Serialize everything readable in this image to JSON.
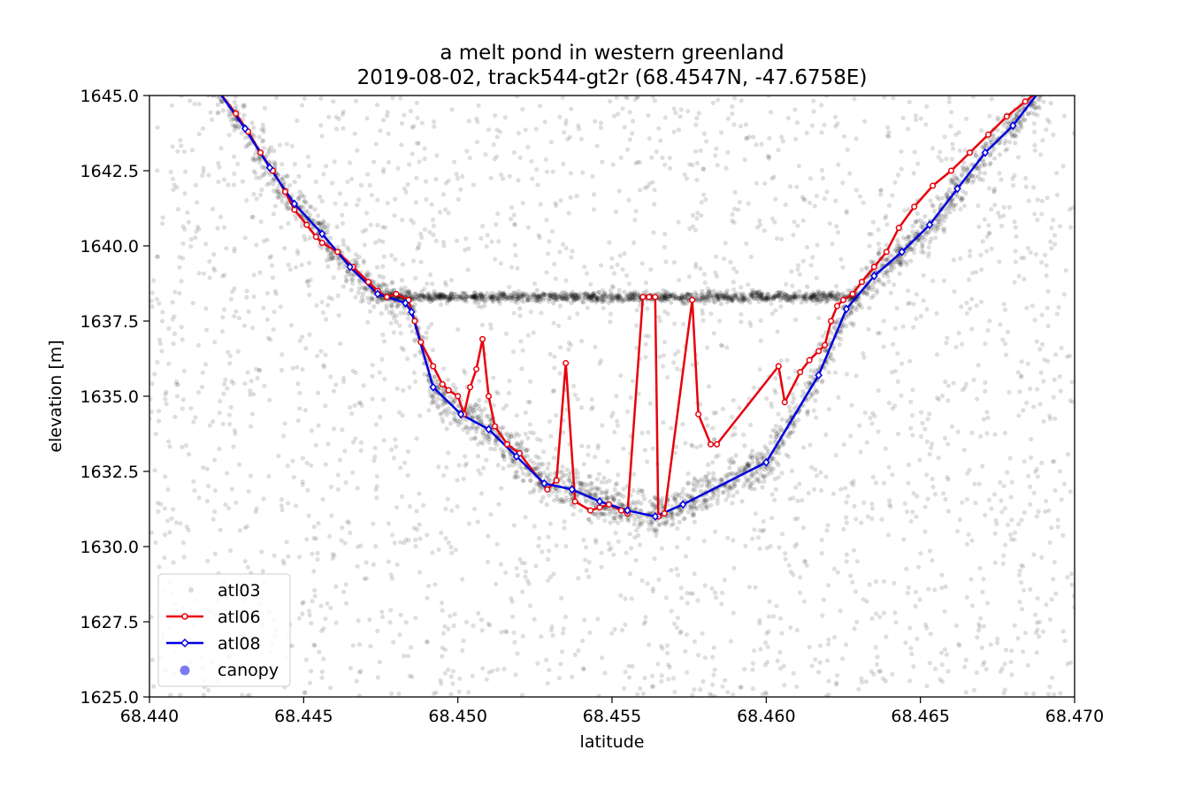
{
  "chart_data": {
    "type": "scatter",
    "title": "a melt pond in western greenland",
    "subtitle": "2019-08-02, track544-gt2r (68.4547N, -47.6758E)",
    "xlabel": "latitude",
    "ylabel": "elevation [m]",
    "xlim": [
      68.44,
      68.47
    ],
    "ylim": [
      1625.0,
      1645.0
    ],
    "x_ticks": [
      "68.440",
      "68.445",
      "68.450",
      "68.455",
      "68.460",
      "68.465",
      "68.470"
    ],
    "y_ticks": [
      "1625.0",
      "1627.5",
      "1630.0",
      "1632.5",
      "1635.0",
      "1637.5",
      "1640.0",
      "1642.5",
      "1645.0"
    ],
    "grid": false,
    "legend_position": "lower-left",
    "legend": [
      "atl03",
      "atl06",
      "atl08",
      "canopy"
    ],
    "colors": {
      "atl03": "#000000",
      "atl06": "#e8000b",
      "atl08": "#0000e0",
      "canopy": "#7b7bf0"
    },
    "series": [
      {
        "name": "atl06",
        "x": [
          68.4422,
          68.4428,
          68.4432,
          68.4436,
          68.444,
          68.4444,
          68.4447,
          68.4451,
          68.4454,
          68.4456,
          68.4461,
          68.4466,
          68.4471,
          68.4474,
          68.4477,
          68.448,
          68.4484,
          68.4486,
          68.4488,
          68.4492,
          68.4495,
          68.4497,
          68.45,
          68.4502,
          68.4504,
          68.4506,
          68.4508,
          68.451,
          68.4512,
          68.4516,
          68.452,
          68.4529,
          68.4532,
          68.4535,
          68.4538,
          68.4543,
          68.4546,
          68.4549,
          68.4553,
          68.4555,
          68.456,
          68.4562,
          68.4564,
          68.4565,
          68.4567,
          68.4576,
          68.4578,
          68.4582,
          68.4584,
          68.4604,
          68.4606,
          68.4611,
          68.4614,
          68.4617,
          68.4619,
          68.4621,
          68.4623,
          68.4625,
          68.4628,
          68.4631,
          68.4635,
          68.4639,
          68.4643,
          68.4648,
          68.4654,
          68.466,
          68.4666,
          68.4672,
          68.4678,
          68.4684,
          68.4689
        ],
        "y": [
          1645.2,
          1644.4,
          1643.8,
          1643.1,
          1642.5,
          1641.8,
          1641.2,
          1640.7,
          1640.3,
          1640.1,
          1639.8,
          1639.3,
          1638.8,
          1638.5,
          1638.3,
          1638.4,
          1638.2,
          1637.5,
          1636.8,
          1636.0,
          1635.4,
          1635.2,
          1635.0,
          1634.4,
          1635.3,
          1635.9,
          1636.9,
          1635.0,
          1634.0,
          1633.4,
          1633.1,
          1631.9,
          1632.2,
          1636.1,
          1631.5,
          1631.2,
          1631.3,
          1631.4,
          1631.2,
          1631.1,
          1638.3,
          1638.3,
          1638.3,
          1631.0,
          1631.1,
          1638.2,
          1634.4,
          1633.4,
          1633.4,
          1636.0,
          1634.8,
          1635.8,
          1636.2,
          1636.5,
          1636.7,
          1637.5,
          1638.0,
          1638.2,
          1638.4,
          1638.8,
          1639.3,
          1639.8,
          1640.6,
          1641.3,
          1642.0,
          1642.5,
          1643.1,
          1643.7,
          1644.3,
          1644.8,
          1645.2
        ],
        "marker": "circle"
      },
      {
        "name": "atl08",
        "x": [
          68.4422,
          68.4431,
          68.4439,
          68.4447,
          68.4456,
          68.4465,
          68.4474,
          68.4483,
          68.4485,
          68.4492,
          68.4501,
          68.451,
          68.4519,
          68.4528,
          68.4537,
          68.4546,
          68.4555,
          68.4564,
          68.4573,
          68.46,
          68.4617,
          68.4626,
          68.4635,
          68.4644,
          68.4653,
          68.4662,
          68.4671,
          68.468,
          68.4689
        ],
        "y": [
          1645.2,
          1643.9,
          1642.6,
          1641.4,
          1640.4,
          1639.3,
          1638.4,
          1638.1,
          1637.8,
          1635.3,
          1634.4,
          1633.9,
          1633.0,
          1632.1,
          1631.9,
          1631.5,
          1631.2,
          1631.0,
          1631.4,
          1632.8,
          1635.7,
          1637.9,
          1639.0,
          1639.8,
          1640.7,
          1641.9,
          1643.1,
          1644.0,
          1645.2
        ],
        "marker": "diamond"
      }
    ],
    "point_cloud": {
      "name": "atl03",
      "description_of_structure": "photon returns",
      "surface_elevation": 1638.3
    }
  }
}
